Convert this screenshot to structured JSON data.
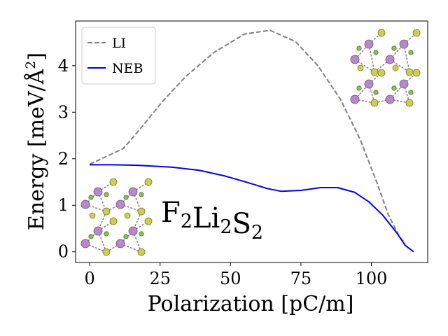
{
  "chart_data": {
    "type": "line",
    "xlabel": "Polarization [pC/m]",
    "ylabel": "Energy [meV/Å²]",
    "ylabel_main": "Energy [meV/Å",
    "ylabel_sup": "2",
    "ylabel_end": "]",
    "xlim": [
      -5,
      120
    ],
    "ylim": [
      -0.23,
      4.96
    ],
    "xticks": [
      0,
      25,
      50,
      75,
      100
    ],
    "yticks": [
      0,
      1,
      2,
      3,
      4
    ],
    "grid": false,
    "legend_position": "top-left",
    "series": [
      {
        "name": "LI",
        "color": "#808080",
        "style": "dashed",
        "x": [
          0,
          12,
          19,
          26,
          34,
          44,
          55,
          64,
          73,
          81,
          89,
          96,
          102,
          106,
          110,
          112
        ],
        "y": [
          1.88,
          2.22,
          2.72,
          3.24,
          3.76,
          4.28,
          4.68,
          4.76,
          4.52,
          4.0,
          3.28,
          2.42,
          1.48,
          0.8,
          0.32,
          0.18
        ]
      },
      {
        "name": "NEB",
        "color": "#0000ee",
        "style": "solid",
        "x": [
          0,
          8,
          17,
          29,
          39,
          48,
          56,
          63,
          68,
          75,
          82,
          88,
          94,
          99,
          104,
          109,
          112,
          115
        ],
        "y": [
          1.87,
          1.87,
          1.86,
          1.82,
          1.75,
          1.63,
          1.49,
          1.36,
          1.3,
          1.32,
          1.38,
          1.38,
          1.28,
          1.08,
          0.79,
          0.41,
          0.14,
          0.0
        ]
      }
    ],
    "annotation": {
      "formula_parts": [
        {
          "text": "F",
          "sub": "2"
        },
        {
          "text": "Li",
          "sub": "2"
        },
        {
          "text": "S",
          "sub": "2"
        }
      ]
    }
  },
  "colors": {
    "lithium_atom": "#b48ac8",
    "sulfur_atom": "#cdcd55",
    "fluorine_atom": "#8fbf55"
  }
}
